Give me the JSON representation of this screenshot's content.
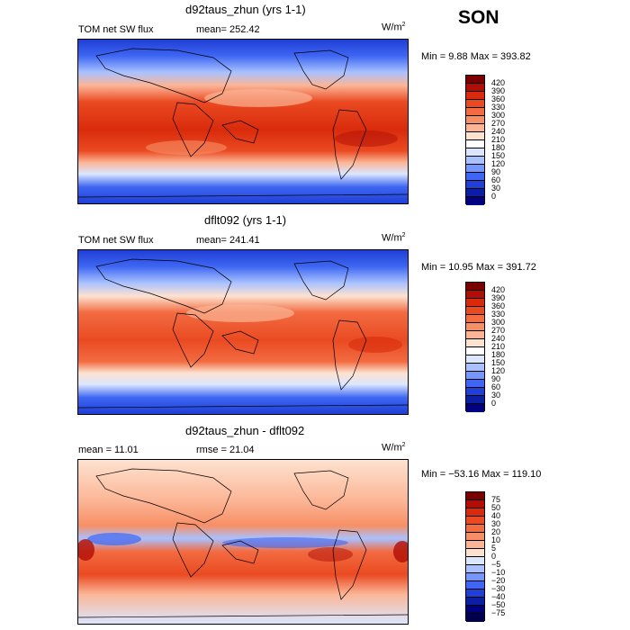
{
  "season": "SON",
  "panels": [
    {
      "title": "d92taus_zhun (yrs 1-1)",
      "left_label": "TOM net SW flux",
      "mean_label": "mean= 252.42",
      "units": "W/m",
      "units_exp": "2",
      "minmax": "Min =    9.88 Max = 393.82",
      "colorbar": {
        "levels": [
          "420",
          "390",
          "360",
          "330",
          "300",
          "270",
          "240",
          "210",
          "180",
          "150",
          "120",
          "90",
          "60",
          "30",
          "0"
        ],
        "colors": [
          "#7a0000",
          "#b00e05",
          "#d92b0c",
          "#ea4a22",
          "#f26b41",
          "#f78f66",
          "#fbb596",
          "#fde2d0",
          "#ffffff",
          "#dbe6ff",
          "#a9c1ff",
          "#7496ff",
          "#3e66f2",
          "#1f3fd6",
          "#0a1fa3",
          "#000080"
        ]
      }
    },
    {
      "title": "dflt092 (yrs 1-1)",
      "left_label": "TOM net SW flux",
      "mean_label": "mean= 241.41",
      "units": "W/m",
      "units_exp": "2",
      "minmax": "Min =  10.95 Max = 391.72",
      "colorbar": {
        "levels": [
          "420",
          "390",
          "360",
          "330",
          "300",
          "270",
          "240",
          "210",
          "180",
          "150",
          "120",
          "90",
          "60",
          "30",
          "0"
        ],
        "colors": [
          "#7a0000",
          "#b00e05",
          "#d92b0c",
          "#ea4a22",
          "#f26b41",
          "#f78f66",
          "#fbb596",
          "#fde2d0",
          "#ffffff",
          "#dbe6ff",
          "#a9c1ff",
          "#7496ff",
          "#3e66f2",
          "#1f3fd6",
          "#0a1fa3",
          "#000080"
        ]
      }
    },
    {
      "title": "d92taus_zhun - dflt092",
      "left_label": "mean =   11.01",
      "mean_label": "rmse =   21.04",
      "units": "W/m",
      "units_exp": "2",
      "minmax": "Min = −53.16 Max = 119.10",
      "colorbar": {
        "levels": [
          "75",
          "50",
          "40",
          "30",
          "20",
          "10",
          "5",
          "0",
          "−5",
          "−10",
          "−20",
          "−30",
          "−40",
          "−50",
          "−75"
        ],
        "colors": [
          "#7a0000",
          "#b00e05",
          "#d92b0c",
          "#ea4a22",
          "#f26b41",
          "#f78f66",
          "#fbb596",
          "#fde2d0",
          "#dbe6ff",
          "#a9c1ff",
          "#7496ff",
          "#3e66f2",
          "#1f3fd6",
          "#0a1fa3",
          "#000080",
          "#00004d"
        ]
      }
    }
  ],
  "chart_data": [
    {
      "type": "heatmap",
      "title": "d92taus_zhun (yrs 1-1)",
      "field": "TOM net SW flux",
      "units": "W/m2",
      "mean": 252.42,
      "min": 9.88,
      "max": 393.82,
      "contour_levels": [
        0,
        30,
        60,
        90,
        120,
        150,
        180,
        210,
        240,
        270,
        300,
        330,
        360,
        390,
        420
      ]
    },
    {
      "type": "heatmap",
      "title": "dflt092 (yrs 1-1)",
      "field": "TOM net SW flux",
      "units": "W/m2",
      "mean": 241.41,
      "min": 10.95,
      "max": 391.72,
      "contour_levels": [
        0,
        30,
        60,
        90,
        120,
        150,
        180,
        210,
        240,
        270,
        300,
        330,
        360,
        390,
        420
      ]
    },
    {
      "type": "heatmap",
      "title": "d92taus_zhun - dflt092",
      "units": "W/m2",
      "mean": 11.01,
      "rmse": 21.04,
      "min": -53.16,
      "max": 119.1,
      "contour_levels": [
        -75,
        -50,
        -40,
        -30,
        -20,
        -10,
        -5,
        0,
        5,
        10,
        20,
        30,
        40,
        50,
        75
      ]
    }
  ]
}
